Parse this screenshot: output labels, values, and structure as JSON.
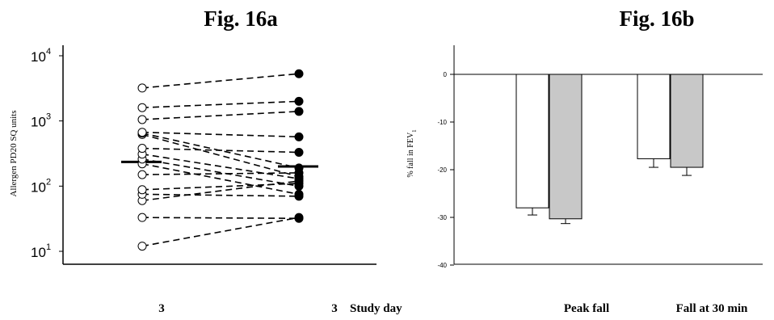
{
  "figures": {
    "a_title": "Fig. 16a",
    "b_title": "Fig. 16b"
  },
  "chart_data": [
    {
      "type": "scatter",
      "title": "Fig. 16a",
      "ylabel": "Allergen PD20 SQ units",
      "xlabel": "Study day",
      "y_scale": "log",
      "ylim": [
        8,
        15000
      ],
      "y_ticks": [
        {
          "value": 10,
          "base": "10",
          "exp": "1"
        },
        {
          "value": 100,
          "base": "10",
          "exp": "2"
        },
        {
          "value": 1000,
          "base": "10",
          "exp": "3"
        },
        {
          "value": 10000,
          "base": "10",
          "exp": "4"
        }
      ],
      "x_categories": [
        "3",
        "3"
      ],
      "pairs": [
        [
          12,
          33
        ],
        [
          33,
          32
        ],
        [
          60,
          120
        ],
        [
          75,
          70
        ],
        [
          88,
          110
        ],
        [
          150,
          160
        ],
        [
          220,
          75
        ],
        [
          260,
          100
        ],
        [
          310,
          130
        ],
        [
          380,
          330
        ],
        [
          620,
          140
        ],
        [
          650,
          190
        ],
        [
          670,
          570
        ],
        [
          1050,
          1400
        ],
        [
          1600,
          2000
        ],
        [
          3200,
          5300
        ]
      ],
      "medians": [
        235,
        200
      ]
    },
    {
      "type": "bar",
      "title": "Fig. 16b",
      "ylabel_main": "% fall in FEV",
      "ylabel_sub": "1",
      "categories": [
        "Peak fall",
        "Fall at 30 min"
      ],
      "series": [
        {
          "values": [
            -28.0,
            -17.7
          ],
          "errors": [
            1.5,
            1.8
          ],
          "color": "#ffffff"
        },
        {
          "values": [
            -30.3,
            -19.5
          ],
          "errors": [
            1.0,
            1.7
          ],
          "color": "#c8c8c8"
        }
      ],
      "ylim": [
        -40,
        5
      ],
      "y_ticks": [
        "0",
        "-10",
        "-20",
        "-30",
        "-40"
      ]
    }
  ]
}
